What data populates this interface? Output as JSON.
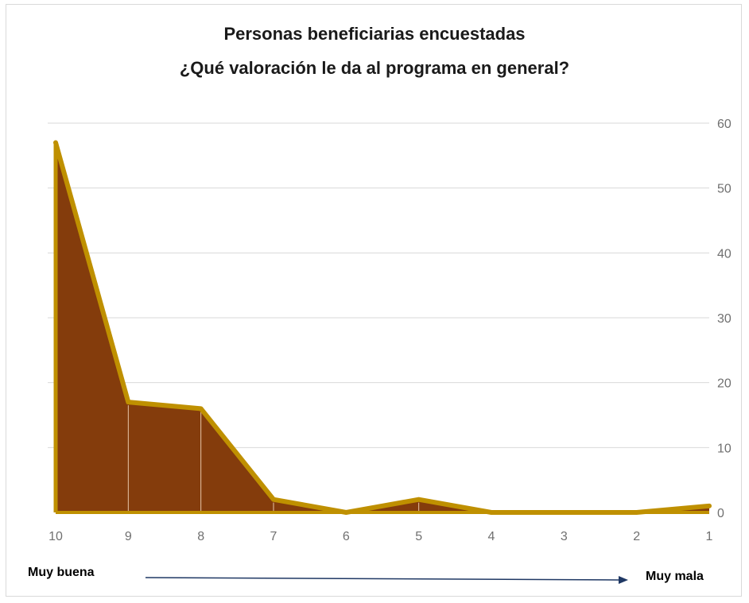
{
  "chart_data": {
    "type": "area",
    "title": "Personas beneficiarias encuestadas",
    "subtitle": "¿Qué valoración le da al programa en general?",
    "categories": [
      "10",
      "9",
      "8",
      "7",
      "6",
      "5",
      "4",
      "3",
      "2",
      "1"
    ],
    "values": [
      57,
      17,
      16,
      2,
      0,
      2,
      0,
      0,
      0,
      1
    ],
    "ylim": [
      0,
      60
    ],
    "yticks": [
      0,
      10,
      20,
      30,
      40,
      50,
      60
    ],
    "y_axis_position": "right",
    "grid": true,
    "fill_color": "#843C0C",
    "line_color": "#BF9000",
    "scale_left_label": "Muy buena",
    "scale_right_label": "Muy mala",
    "arrow_color": "#1F3864"
  }
}
